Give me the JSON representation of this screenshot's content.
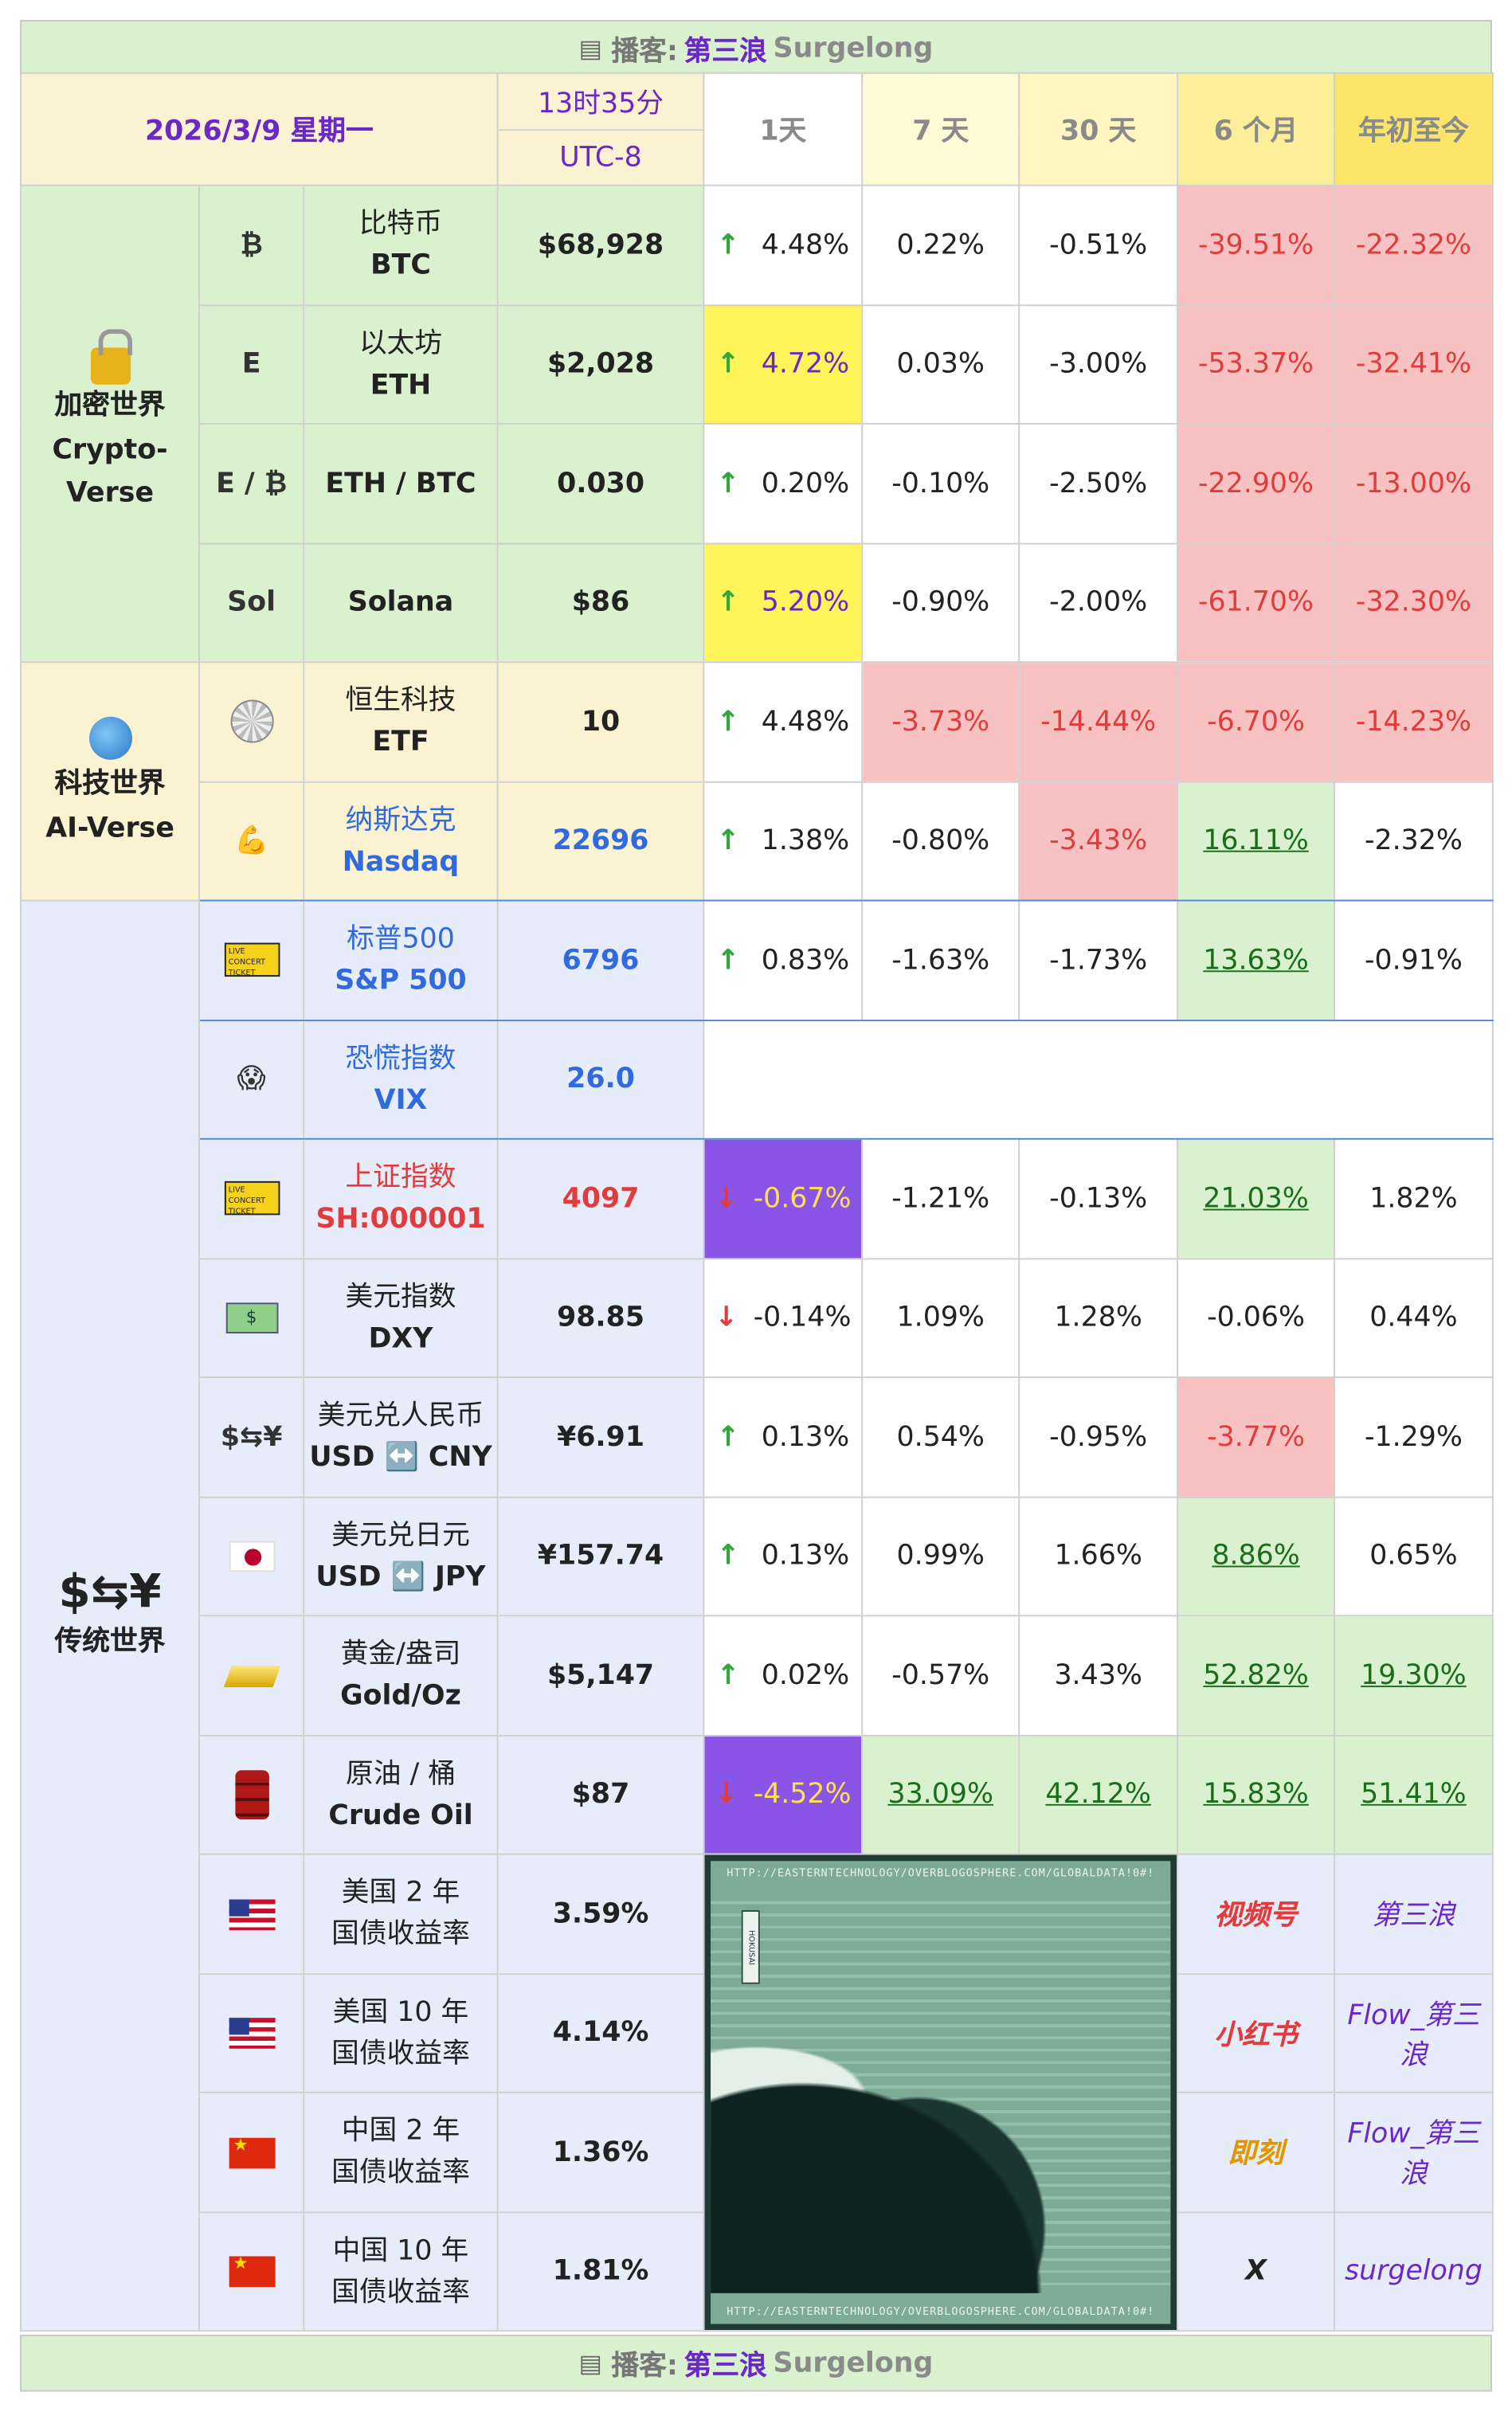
{
  "banner": {
    "icon": "book-icon",
    "prefix": "播客:",
    "show": "第三浪",
    "name": "Surgelong"
  },
  "header": {
    "date": "2026/3/9 星期一",
    "time": "13时35分",
    "tz": "UTC-8",
    "cols": [
      "1天",
      "7 天",
      "30 天",
      "6 个月",
      "年初至今"
    ]
  },
  "groups": {
    "crypto": {
      "cn": "加密世界",
      "en": "Crypto-Verse",
      "icon": "lock-icon"
    },
    "tech": {
      "cn": "科技世界",
      "en": "AI-Verse",
      "icon": "globe-icon"
    },
    "trad": {
      "cn": "传统世界",
      "icon": "currency-exchange-icon",
      "glyph": "$⇆¥"
    }
  },
  "rows": [
    {
      "id": "btc",
      "icon": "bitcoin-icon",
      "glyph": "₿",
      "cn": "比特币",
      "en": "BTC",
      "value": "$68,928",
      "d1": "4.48%",
      "d1_dir": "up",
      "d7": "0.22%",
      "d30": "-0.51%",
      "m6": "-39.51%",
      "ytd": "-22.32%"
    },
    {
      "id": "eth",
      "icon": "ethereum-icon",
      "glyph": "E",
      "cn": "以太坊",
      "en": "ETH",
      "value": "$2,028",
      "d1": "4.72%",
      "d1_dir": "up",
      "d7": "0.03%",
      "d30": "-3.00%",
      "m6": "-53.37%",
      "ytd": "-32.41%"
    },
    {
      "id": "ethbtc",
      "icon": "eth-btc-icon",
      "glyph": "E / ₿",
      "cn": "",
      "en": "ETH / BTC",
      "value": "0.030",
      "d1": "0.20%",
      "d1_dir": "up",
      "d7": "-0.10%",
      "d30": "-2.50%",
      "m6": "-22.90%",
      "ytd": "-13.00%"
    },
    {
      "id": "sol",
      "icon": "solana-icon",
      "glyph": "Sol",
      "cn": "",
      "en": "Solana",
      "value": "$86",
      "d1": "5.20%",
      "d1_dir": "up",
      "d7": "-0.90%",
      "d30": "-2.00%",
      "m6": "-61.70%",
      "ytd": "-32.30%"
    },
    {
      "id": "hstech",
      "icon": "disco-ball-icon",
      "cn": "恒生科技",
      "en": "ETF",
      "value": "10",
      "d1": "4.48%",
      "d1_dir": "up",
      "d7": "-3.73%",
      "d30": "-14.44%",
      "m6": "-6.70%",
      "ytd": "-14.23%"
    },
    {
      "id": "nasdaq",
      "icon": "flexed-bicep-icon",
      "glyph": "💪",
      "cn": "纳斯达克",
      "en": "Nasdaq",
      "value": "22696",
      "d1": "1.38%",
      "d1_dir": "up",
      "d7": "-0.80%",
      "d30": "-3.43%",
      "m6": "16.11%",
      "ytd": "-2.32%"
    },
    {
      "id": "sp500",
      "icon": "ticket-icon",
      "ticket": "LIVE CONCERT TICKET",
      "cn": "标普500",
      "en": "S&P 500",
      "value": "6796",
      "d1": "0.83%",
      "d1_dir": "up",
      "d7": "-1.63%",
      "d30": "-1.73%",
      "m6": "13.63%",
      "ytd": "-0.91%"
    },
    {
      "id": "vix",
      "icon": "screaming-face-icon",
      "glyph": "😱",
      "cn": "恐慌指数",
      "en": "VIX",
      "value": "26.0"
    },
    {
      "id": "sh",
      "icon": "ticket-icon",
      "ticket": "LIVE CONCERT TICKET",
      "cn": "上证指数",
      "en": "SH:000001",
      "value": "4097",
      "d1": "-0.67%",
      "d1_dir": "down",
      "d7": "-1.21%",
      "d30": "-0.13%",
      "m6": "21.03%",
      "ytd": "1.82%"
    },
    {
      "id": "dxy",
      "icon": "dollar-bill-icon",
      "glyph": "$",
      "cn": "美元指数",
      "en": "DXY",
      "value": "98.85",
      "d1": "-0.14%",
      "d1_dir": "down",
      "d7": "1.09%",
      "d30": "1.28%",
      "m6": "-0.06%",
      "ytd": "0.44%"
    },
    {
      "id": "usdcny",
      "icon": "currency-exchange-icon",
      "glyph": "$⇆¥",
      "cn": "美元兑人民币",
      "en": "USD ↔️ CNY",
      "value": "¥6.91",
      "d1": "0.13%",
      "d1_dir": "up",
      "d7": "0.54%",
      "d30": "-0.95%",
      "m6": "-3.77%",
      "ytd": "-1.29%"
    },
    {
      "id": "usdjpy",
      "icon": "japan-flag-icon",
      "cn": "美元兑日元",
      "en": "USD ↔️ JPY",
      "value": "¥157.74",
      "d1": "0.13%",
      "d1_dir": "up",
      "d7": "0.99%",
      "d30": "1.66%",
      "m6": "8.86%",
      "ytd": "0.65%"
    },
    {
      "id": "gold",
      "icon": "gold-bar-icon",
      "cn": "黄金/盎司",
      "en": "Gold/Oz",
      "value": "$5,147",
      "d1": "0.02%",
      "d1_dir": "up",
      "d7": "-0.57%",
      "d30": "3.43%",
      "m6": "52.82%",
      "ytd": "19.30%"
    },
    {
      "id": "oil",
      "icon": "oil-barrel-icon",
      "cn": "原油 / 桶",
      "en": "Crude Oil",
      "value": "$87",
      "d1": "-4.52%",
      "d1_dir": "down",
      "d7": "33.09%",
      "d30": "42.12%",
      "m6": "15.83%",
      "ytd": "51.41%"
    }
  ],
  "bonds": [
    {
      "icon": "us-flag-icon",
      "l1": "美国 2 年",
      "l2": "国债收益率",
      "value": "3.59%"
    },
    {
      "icon": "us-flag-icon",
      "l1": "美国 10 年",
      "l2": "国债收益率",
      "value": "4.14%"
    },
    {
      "icon": "china-flag-icon",
      "l1": "中国 2 年",
      "l2": "国债收益率",
      "value": "1.36%"
    },
    {
      "icon": "china-flag-icon",
      "l1": "中国 10 年",
      "l2": "国债收益率",
      "value": "1.81%"
    }
  ],
  "art": {
    "url": "HTTP://EASTERNTECHNOLOGY/OVERBLOGOSPHERE.COM/GLOBALDATA!0#!",
    "tag": "HOKUSAI"
  },
  "social": [
    {
      "platform": "视频号",
      "handle": "第三浪"
    },
    {
      "platform": "小红书",
      "handle": "Flow_第三浪"
    },
    {
      "platform": "即刻",
      "handle": "Flow_第三浪"
    },
    {
      "platform": "X",
      "handle": "surgelong"
    }
  ]
}
